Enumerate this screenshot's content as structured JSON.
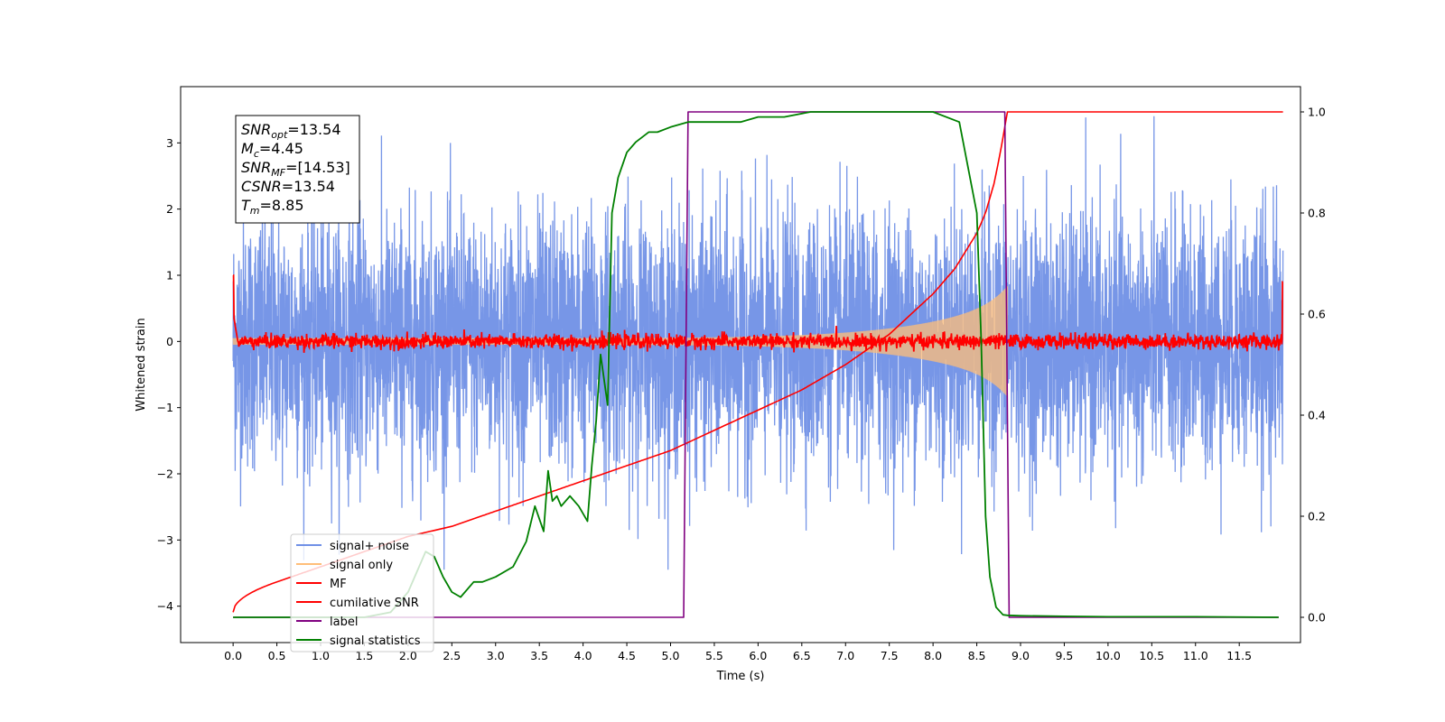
{
  "chart_data": {
    "type": "line",
    "xlabel": "Time (s)",
    "ylabel": "Whitened strain",
    "xlim": [
      -0.6,
      12.2
    ],
    "ylim": [
      -4.55,
      3.85
    ],
    "ylim_right": [
      -0.05,
      1.05
    ],
    "x_ticks": [
      0.0,
      0.5,
      1.0,
      1.5,
      2.0,
      2.5,
      3.0,
      3.5,
      4.0,
      4.5,
      5.0,
      5.5,
      6.0,
      6.5,
      7.0,
      7.5,
      8.0,
      8.5,
      9.0,
      9.5,
      10.0,
      10.5,
      11.0,
      11.5
    ],
    "x_tick_labels": [
      "0.0",
      "0.5",
      "1.0",
      "1.5",
      "2.0",
      "2.5",
      "3.0",
      "3.5",
      "4.0",
      "4.5",
      "5.0",
      "5.5",
      "6.0",
      "6.5",
      "7.0",
      "7.5",
      "8.0",
      "8.5",
      "9.0",
      "9.5",
      "10.0",
      "10.5",
      "11.0",
      "11.5"
    ],
    "y_ticks": [
      -4,
      -3,
      -2,
      -1,
      0,
      1,
      2,
      3
    ],
    "y_tick_labels": [
      "−4",
      "−3",
      "−2",
      "−1",
      "0",
      "1",
      "2",
      "3"
    ],
    "y_right_ticks": [
      0.0,
      0.2,
      0.4,
      0.6,
      0.8,
      1.0
    ],
    "y_right_tick_labels": [
      "0.0",
      "0.2",
      "0.4",
      "0.6",
      "0.8",
      "1.0"
    ],
    "grid": false,
    "legend_position": "lower-left",
    "annotation_box": {
      "lines": [
        {
          "base": "SNR",
          "sub": "opt",
          "rest": "=13.54"
        },
        {
          "base": "M",
          "sub": "c",
          "rest": "=4.45"
        },
        {
          "base": "SNR",
          "sub": "MF",
          "rest": "=[14.53]"
        },
        {
          "base": "CSNR",
          "sub": "",
          "rest": "=13.54"
        },
        {
          "base": "T",
          "sub": "m",
          "rest": "=8.85"
        }
      ]
    },
    "series": [
      {
        "name": "signal+ noise",
        "color": "#7090e6",
        "axis": "left",
        "kind": "gaussian noise band, amplitude about ±2.5 (spikes to ±3.4)",
        "x_range": [
          0.0,
          12.0
        ]
      },
      {
        "name": "signal only",
        "color": "#ffbe78",
        "axis": "left",
        "kind": "chirp envelope growing from about ±0.05 to about ±0.8, ending at 8.85",
        "x_range": [
          0.0,
          8.85
        ]
      },
      {
        "name": "MF",
        "color": "#ff0000",
        "axis": "left",
        "kind": "noisy trace around 0, amplitude about ±0.15, edge spikes to 1.0 and 0.9",
        "x_range": [
          0.0,
          12.0
        ]
      },
      {
        "name": "cumilative SNR",
        "color": "#ff0000",
        "axis": "right",
        "x": [
          0.0,
          0.5,
          1.0,
          1.5,
          2.0,
          2.5,
          3.0,
          3.5,
          4.0,
          4.5,
          5.0,
          5.5,
          6.0,
          6.5,
          7.0,
          7.5,
          8.0,
          8.25,
          8.5,
          8.6,
          8.7,
          8.78,
          8.85,
          12.0
        ],
        "values": [
          0.01,
          0.07,
          0.1,
          0.13,
          0.16,
          0.18,
          0.21,
          0.24,
          0.27,
          0.3,
          0.33,
          0.37,
          0.41,
          0.45,
          0.5,
          0.56,
          0.64,
          0.69,
          0.76,
          0.8,
          0.86,
          0.93,
          1.0,
          1.0
        ]
      },
      {
        "name": "label",
        "color": "#800080",
        "axis": "right",
        "x": [
          0.0,
          5.15,
          5.2,
          8.82,
          8.87,
          11.95
        ],
        "values": [
          0.0,
          0.0,
          1.0,
          1.0,
          0.0,
          0.0
        ]
      },
      {
        "name": "signal statistics",
        "color": "#008000",
        "axis": "right",
        "x": [
          0.0,
          0.5,
          1.0,
          1.5,
          1.8,
          2.0,
          2.1,
          2.2,
          2.3,
          2.4,
          2.5,
          2.6,
          2.75,
          2.85,
          3.0,
          3.2,
          3.35,
          3.45,
          3.55,
          3.6,
          3.65,
          3.7,
          3.75,
          3.85,
          3.95,
          4.05,
          4.1,
          4.15,
          4.2,
          4.28,
          4.33,
          4.4,
          4.5,
          4.6,
          4.75,
          4.85,
          5.0,
          5.2,
          5.5,
          5.8,
          6.0,
          6.3,
          6.6,
          7.0,
          7.3,
          7.6,
          8.0,
          8.3,
          8.5,
          8.55,
          8.6,
          8.65,
          8.72,
          8.8,
          8.85,
          9.0,
          9.5,
          10.0,
          11.0,
          11.95
        ],
        "values": [
          0.0,
          0.0,
          0.0,
          0.0,
          0.01,
          0.05,
          0.09,
          0.13,
          0.12,
          0.08,
          0.05,
          0.04,
          0.07,
          0.07,
          0.08,
          0.1,
          0.15,
          0.22,
          0.17,
          0.29,
          0.23,
          0.24,
          0.22,
          0.24,
          0.22,
          0.19,
          0.3,
          0.39,
          0.52,
          0.42,
          0.8,
          0.87,
          0.92,
          0.94,
          0.96,
          0.96,
          0.97,
          0.98,
          0.98,
          0.98,
          0.99,
          0.99,
          1.0,
          1.0,
          1.0,
          1.0,
          1.0,
          0.98,
          0.8,
          0.55,
          0.2,
          0.08,
          0.02,
          0.005,
          0.004,
          0.003,
          0.002,
          0.001,
          0.001,
          0.0
        ]
      }
    ]
  }
}
